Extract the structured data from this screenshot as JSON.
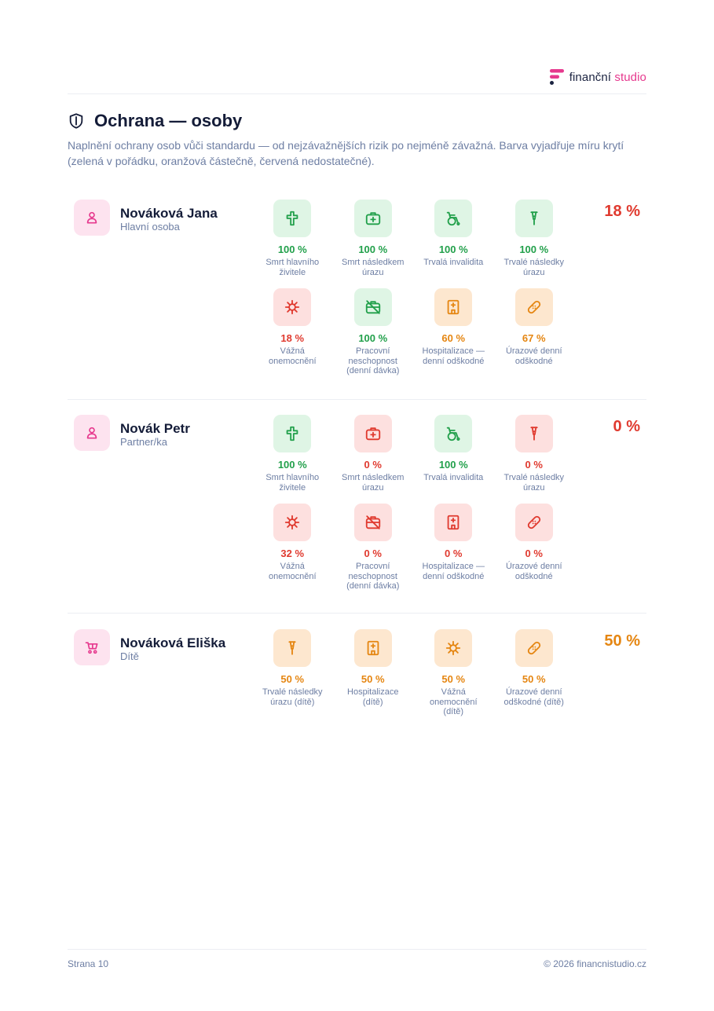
{
  "brand": {
    "name_part1": "finanční",
    "name_part2": "studio",
    "accent_color": "#e6398e"
  },
  "page": {
    "title": "Ochrana — osoby",
    "subtitle": "Naplnění ochrany osob vůči standardu — od nejzávažnějších rizik po nejméně závažná. Barva vyjadřuje míru krytí (zelená v pořádku, oranžová částečně, červená nedostatečné)."
  },
  "colors": {
    "green": "#22a04b",
    "orange": "#e58612",
    "red": "#e03a2f"
  },
  "persons": [
    {
      "name": "Nováková Jana",
      "role": "Hlavní osoba",
      "avatar_icon": "person-icon",
      "total": "18 %",
      "total_status": "red",
      "items": [
        {
          "icon": "cross-icon",
          "pct": "100 %",
          "label": "Smrt hlavního živitele",
          "status": "green"
        },
        {
          "icon": "first-aid-kit-icon",
          "pct": "100 %",
          "label": "Smrt následkem úrazu",
          "status": "green"
        },
        {
          "icon": "wheelchair-icon",
          "pct": "100 %",
          "label": "Trvalá invalidita",
          "status": "green"
        },
        {
          "icon": "crutch-icon",
          "pct": "100 %",
          "label": "Trvalé následky úrazu",
          "status": "green"
        },
        {
          "icon": "virus-icon",
          "pct": "18 %",
          "label": "Vážná onemocnění",
          "status": "red"
        },
        {
          "icon": "briefcase-off-icon",
          "pct": "100 %",
          "label": "Pracovní neschopnost (denní dávka)",
          "status": "green"
        },
        {
          "icon": "hospital-icon",
          "pct": "60 %",
          "label": "Hospitalizace — denní odškodné",
          "status": "orange"
        },
        {
          "icon": "bandage-icon",
          "pct": "67 %",
          "label": "Úrazové denní odškodné",
          "status": "orange"
        }
      ]
    },
    {
      "name": "Novák Petr",
      "role": "Partner/ka",
      "avatar_icon": "person-icon",
      "total": "0 %",
      "total_status": "red",
      "items": [
        {
          "icon": "cross-icon",
          "pct": "100 %",
          "label": "Smrt hlavního živitele",
          "status": "green"
        },
        {
          "icon": "first-aid-kit-icon",
          "pct": "0 %",
          "label": "Smrt následkem úrazu",
          "status": "red"
        },
        {
          "icon": "wheelchair-icon",
          "pct": "100 %",
          "label": "Trvalá invalidita",
          "status": "green"
        },
        {
          "icon": "crutch-icon",
          "pct": "0 %",
          "label": "Trvalé následky úrazu",
          "status": "red"
        },
        {
          "icon": "virus-icon",
          "pct": "32 %",
          "label": "Vážná onemocnění",
          "status": "red"
        },
        {
          "icon": "briefcase-off-icon",
          "pct": "0 %",
          "label": "Pracovní neschopnost (denní dávka)",
          "status": "red"
        },
        {
          "icon": "hospital-icon",
          "pct": "0 %",
          "label": "Hospitalizace — denní odškodné",
          "status": "red"
        },
        {
          "icon": "bandage-icon",
          "pct": "0 %",
          "label": "Úrazové denní odškodné",
          "status": "red"
        }
      ]
    },
    {
      "name": "Nováková Eliška",
      "role": "Dítě",
      "avatar_icon": "stroller-icon",
      "total": "50 %",
      "total_status": "orange",
      "items": [
        {
          "icon": "crutch-icon",
          "pct": "50 %",
          "label": "Trvalé následky úrazu (dítě)",
          "status": "orange"
        },
        {
          "icon": "hospital-icon",
          "pct": "50 %",
          "label": "Hospitalizace (dítě)",
          "status": "orange"
        },
        {
          "icon": "virus-icon",
          "pct": "50 %",
          "label": "Vážná onemocnění (dítě)",
          "status": "orange"
        },
        {
          "icon": "bandage-icon",
          "pct": "50 %",
          "label": "Úrazové denní odškodné (dítě)",
          "status": "orange"
        }
      ]
    }
  ],
  "footer": {
    "page_label": "Strana 10",
    "copyright": "© 2026 financnistudio.cz"
  }
}
